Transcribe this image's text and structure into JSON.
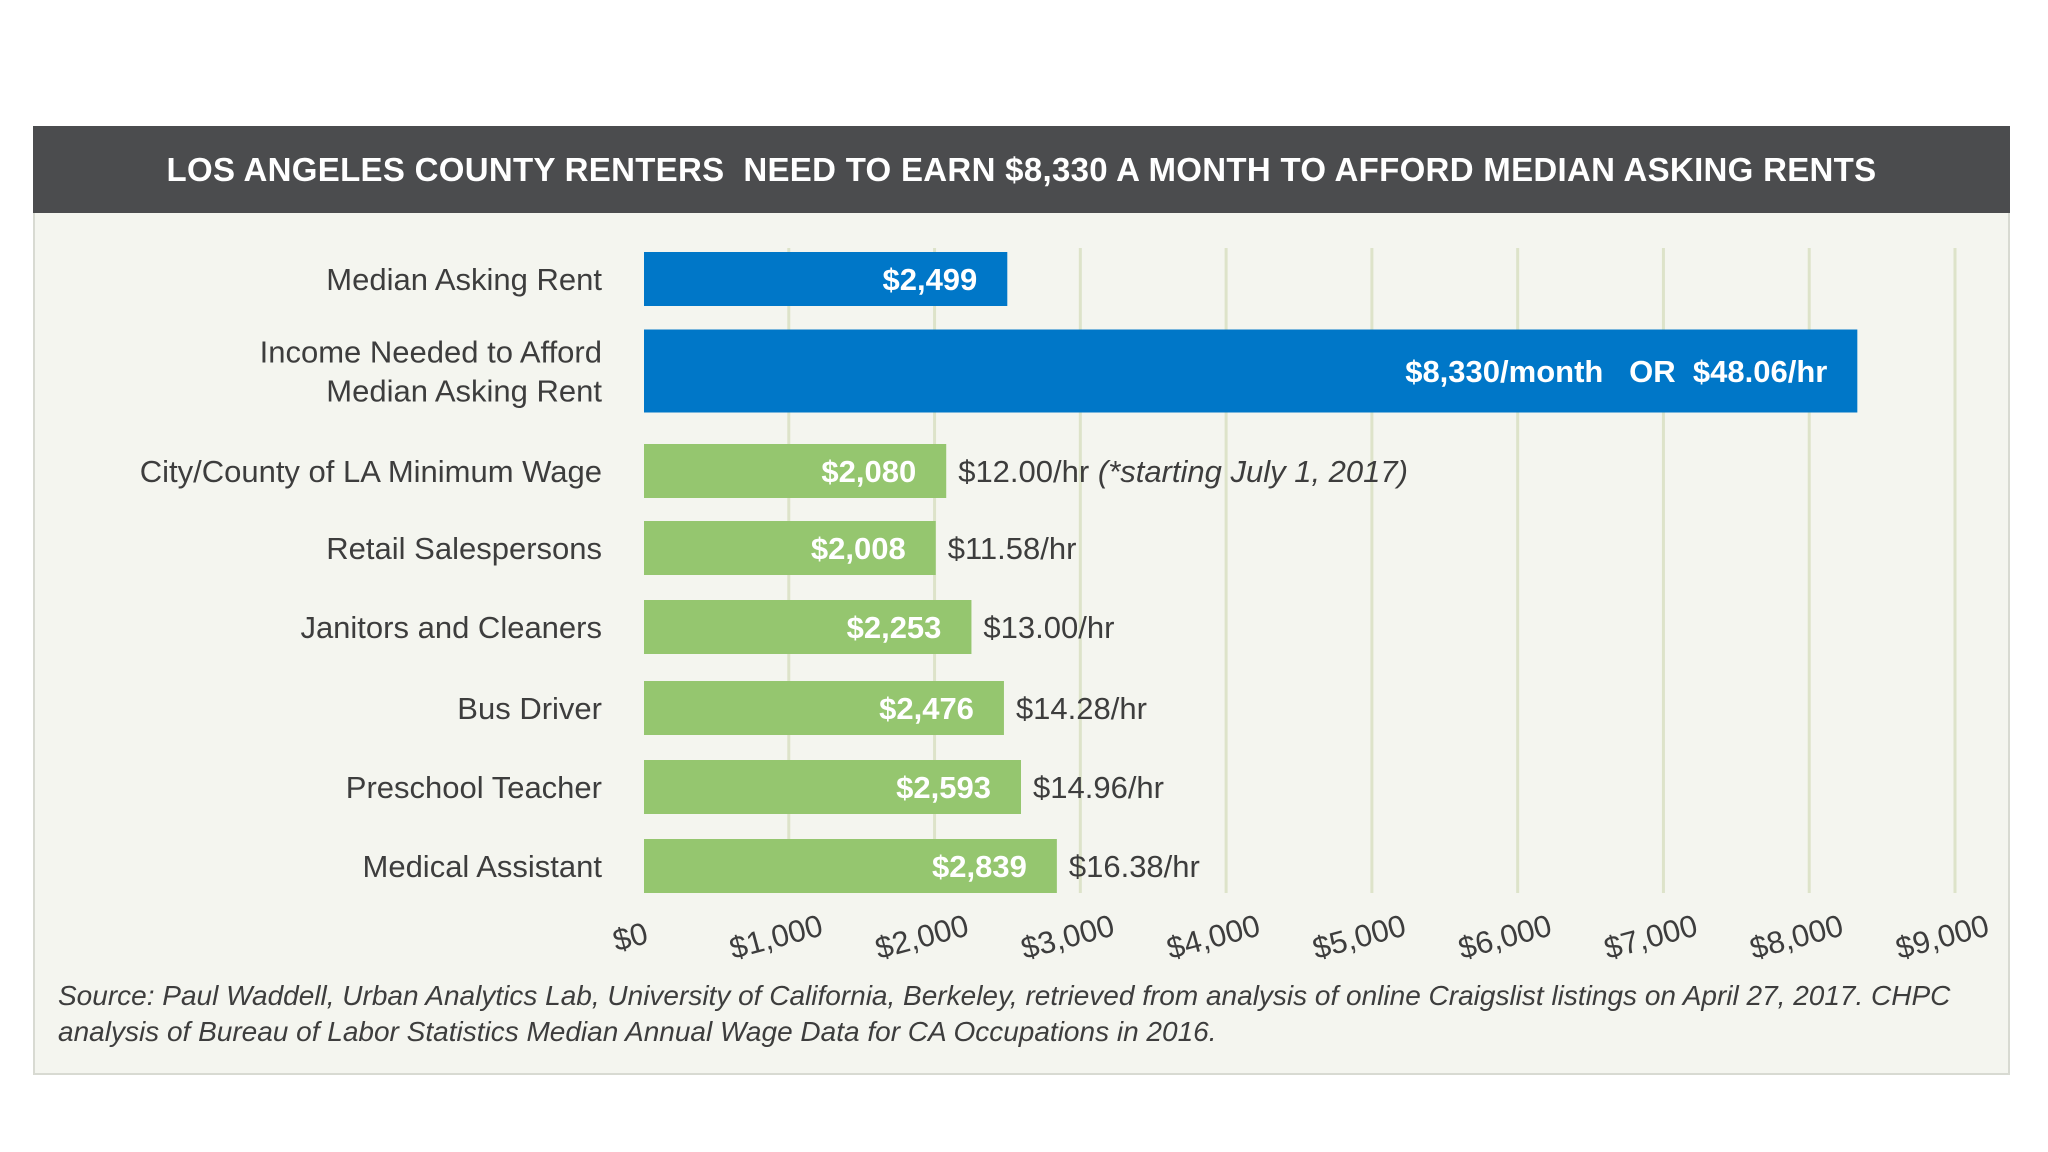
{
  "chart_data": {
    "type": "bar",
    "orientation": "horizontal",
    "title": "LOS ANGELES COUNTY RENTERS  NEED TO EARN $8,330 A MONTH TO AFFORD MEDIAN ASKING RENTS",
    "categories": [
      "Median Asking Rent",
      "Income Needed to Afford Median Asking Rent",
      "City/County of LA Minimum Wage",
      "Retail Salespersons",
      "Janitors and Cleaners",
      "Bus Driver",
      "Preschool Teacher",
      "Medical Assistant"
    ],
    "category_lines": [
      [
        "Median Asking Rent"
      ],
      [
        "Income Needed to Afford",
        "Median Asking Rent"
      ],
      [
        "City/County of LA Minimum Wage"
      ],
      [
        "Retail Salespersons"
      ],
      [
        "Janitors and Cleaners"
      ],
      [
        "Bus Driver"
      ],
      [
        "Preschool Teacher"
      ],
      [
        "Medical Assistant"
      ]
    ],
    "values": [
      2499,
      8330,
      2080,
      2008,
      2253,
      2476,
      2593,
      2839
    ],
    "value_labels": [
      "$2,499",
      "$8,330/month   OR  $48.06/hr",
      "$2,080",
      "$2,008",
      "$2,253",
      "$2,476",
      "$2,593",
      "$2,839"
    ],
    "hourly_labels": [
      "",
      "",
      "$12.00/hr ",
      "$11.58/hr",
      "$13.00/hr",
      "$14.28/hr",
      "$14.96/hr",
      "$16.38/hr"
    ],
    "hourly_notes": [
      "",
      "",
      "(*starting July 1, 2017)",
      "",
      "",
      "",
      "",
      ""
    ],
    "bar_colors": [
      "#0077c8",
      "#0077c8",
      "#95c66f",
      "#95c66f",
      "#95c66f",
      "#95c66f",
      "#95c66f",
      "#95c66f"
    ],
    "x_ticks": [
      0,
      1000,
      2000,
      3000,
      4000,
      5000,
      6000,
      7000,
      8000,
      9000
    ],
    "x_tick_labels": [
      "$0",
      "$1,000",
      "$2,000",
      "$3,000",
      "$4,000",
      "$5,000",
      "$6,000",
      "$7,000",
      "$8,000",
      "$9,000"
    ],
    "xlim": [
      0,
      9000
    ],
    "grid": true,
    "xlabel": "",
    "ylabel": ""
  },
  "source_note": "Source: Paul Waddell, Urban Analytics Lab, University of California, Berkeley, retrieved from analysis of online Craigslist listings on April 27, 2017. CHPC analysis of Bureau of Labor Statistics Median Annual Wage Data for CA Occupations in 2016.",
  "colors": {
    "title_bg": "#4b4c4e",
    "panel_bg": "#f4f5ef",
    "blue": "#0077c8",
    "green": "#95c66f",
    "grid": "#dde3c9"
  }
}
